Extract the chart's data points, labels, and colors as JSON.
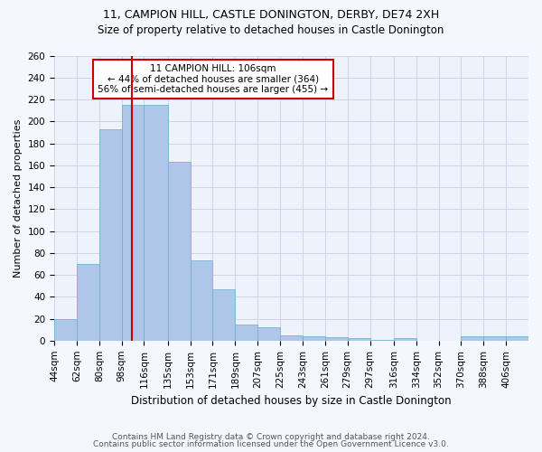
{
  "title1": "11, CAMPION HILL, CASTLE DONINGTON, DERBY, DE74 2XH",
  "title2": "Size of property relative to detached houses in Castle Donington",
  "xlabel": "Distribution of detached houses by size in Castle Donington",
  "ylabel": "Number of detached properties",
  "footer1": "Contains HM Land Registry data © Crown copyright and database right 2024.",
  "footer2": "Contains public sector information licensed under the Open Government Licence v3.0.",
  "annotation_line1": "11 CAMPION HILL: 106sqm",
  "annotation_line2": "← 44% of detached houses are smaller (364)",
  "annotation_line3": "56% of semi-detached houses are larger (455) →",
  "bin_labels": [
    "44sqm",
    "62sqm",
    "80sqm",
    "98sqm",
    "116sqm",
    "135sqm",
    "153sqm",
    "171sqm",
    "189sqm",
    "207sqm",
    "225sqm",
    "243sqm",
    "261sqm",
    "279sqm",
    "297sqm",
    "316sqm",
    "334sqm",
    "352sqm",
    "370sqm",
    "388sqm",
    "406sqm"
  ],
  "bar_values": [
    20,
    70,
    193,
    215,
    215,
    163,
    73,
    47,
    15,
    12,
    5,
    4,
    3,
    2,
    1,
    2,
    0,
    0,
    4,
    4,
    4
  ],
  "bar_color": "#aec6e8",
  "bar_edge_color": "#6aaad4",
  "red_line_x": 106,
  "bin_edges_values": [
    44,
    62,
    80,
    98,
    116,
    135,
    153,
    171,
    189,
    207,
    225,
    243,
    261,
    279,
    297,
    316,
    334,
    352,
    370,
    388,
    406,
    424
  ],
  "ylim": [
    0,
    260
  ],
  "yticks": [
    0,
    20,
    40,
    60,
    80,
    100,
    120,
    140,
    160,
    180,
    200,
    220,
    240,
    260
  ],
  "bg_color": "#eef2fa",
  "fig_bg_color": "#f5f7ff",
  "grid_color": "#c8d0e8",
  "annotation_box_color": "#ffffff",
  "annotation_box_edge": "#cc0000",
  "red_line_color": "#cc0000",
  "title1_fontsize": 9,
  "title2_fontsize": 8.5,
  "ylabel_fontsize": 8,
  "xlabel_fontsize": 8.5,
  "tick_fontsize": 7.5,
  "footer_fontsize": 6.5
}
